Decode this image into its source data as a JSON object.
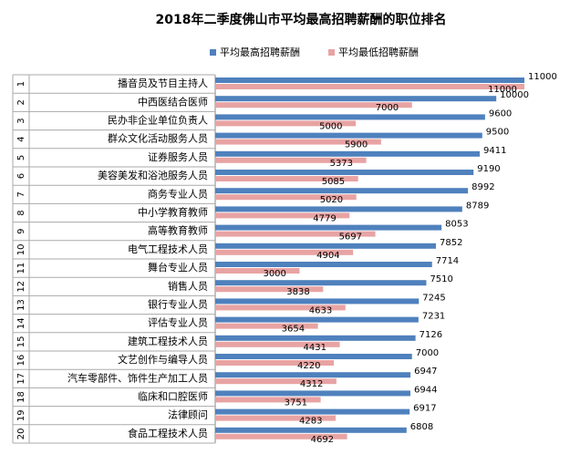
{
  "chart_data": {
    "type": "bar",
    "orientation": "horizontal",
    "title": "2018年二季度佛山市平均最高招聘薪酬的职位排名",
    "ranks": [
      1,
      2,
      3,
      4,
      5,
      6,
      7,
      8,
      9,
      10,
      11,
      12,
      13,
      14,
      15,
      16,
      17,
      18,
      19,
      20
    ],
    "categories": [
      "播音员及节目主持人",
      "中西医结合医师",
      "民办非企业单位负责人",
      "群众文化活动服务人员",
      "证券服务人员",
      "美容美发和浴池服务人员",
      "商务专业人员",
      "中小学教育教师",
      "高等教育教师",
      "电气工程技术人员",
      "舞台专业人员",
      "销售人员",
      "银行专业人员",
      "评估专业人员",
      "建筑工程技术人员",
      "文艺创作与编导人员",
      "汽车零部件、饰件生产加工人员",
      "临床和口腔医师",
      "法律顾问",
      "食品工程技术人员"
    ],
    "series": [
      {
        "name": "平均最高招聘薪酬",
        "color": "#4f81bd",
        "values": [
          11000,
          10000,
          9600,
          9500,
          9411,
          9190,
          8992,
          8789,
          8053,
          7852,
          7714,
          7510,
          7245,
          7231,
          7126,
          7000,
          6947,
          6944,
          6917,
          6808
        ]
      },
      {
        "name": "平均最低招聘薪酬",
        "color": "#e8a3a3",
        "values": [
          11000,
          7000,
          5000,
          5900,
          5373,
          5085,
          5020,
          4779,
          5697,
          4904,
          3000,
          3838,
          4633,
          3654,
          4431,
          4220,
          4312,
          3751,
          4283,
          4692
        ]
      }
    ]
  }
}
